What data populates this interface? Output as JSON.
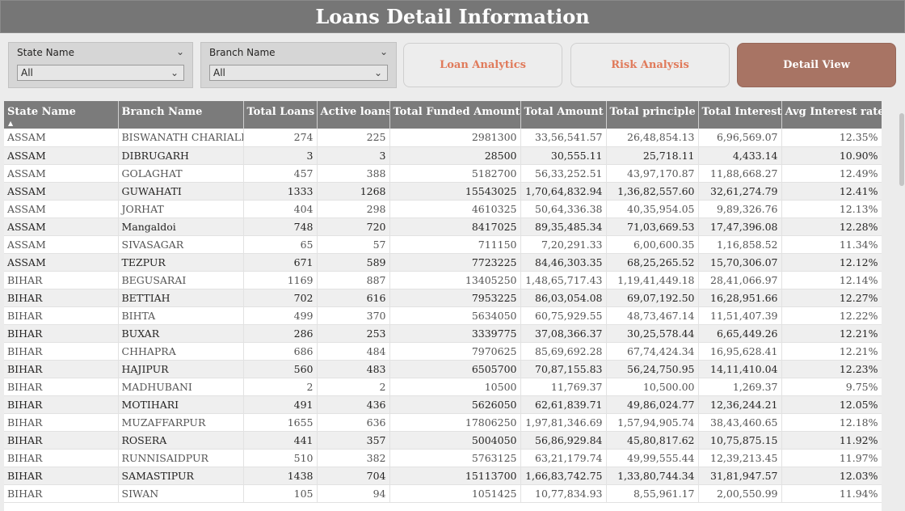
{
  "header": {
    "title": "Loans Detail Information"
  },
  "filters": {
    "state": {
      "label": "State Name",
      "value": "All"
    },
    "branch": {
      "label": "Branch Name",
      "value": "All"
    }
  },
  "nav": {
    "loan_analytics": "Loan Analytics",
    "risk_analysis": "Risk Analysis",
    "detail_view": "Detail View"
  },
  "table": {
    "columns": [
      "State Name",
      "Branch Name",
      "Total Loans",
      "Active loans",
      "Total Funded Amount",
      "Total Amount",
      "Total principle",
      "Total Interest",
      "Avg Interest rate"
    ],
    "rows": [
      [
        "ASSAM",
        "BISWANATH CHARIALI",
        "274",
        "225",
        "2981300",
        "33,56,541.57",
        "26,48,854.13",
        "6,96,569.07",
        "12.35%"
      ],
      [
        "ASSAM",
        "DIBRUGARH",
        "3",
        "3",
        "28500",
        "30,555.11",
        "25,718.11",
        "4,433.14",
        "10.90%"
      ],
      [
        "ASSAM",
        "GOLAGHAT",
        "457",
        "388",
        "5182700",
        "56,33,252.51",
        "43,97,170.87",
        "11,88,668.27",
        "12.49%"
      ],
      [
        "ASSAM",
        "GUWAHATI",
        "1333",
        "1268",
        "15543025",
        "1,70,64,832.94",
        "1,36,82,557.60",
        "32,61,274.79",
        "12.41%"
      ],
      [
        "ASSAM",
        "JORHAT",
        "404",
        "298",
        "4610325",
        "50,64,336.38",
        "40,35,954.05",
        "9,89,326.76",
        "12.13%"
      ],
      [
        "ASSAM",
        "Mangaldoi",
        "748",
        "720",
        "8417025",
        "89,35,485.34",
        "71,03,669.53",
        "17,47,396.08",
        "12.28%"
      ],
      [
        "ASSAM",
        "SIVASAGAR",
        "65",
        "57",
        "711150",
        "7,20,291.33",
        "6,00,600.35",
        "1,16,858.52",
        "11.34%"
      ],
      [
        "ASSAM",
        "TEZPUR",
        "671",
        "589",
        "7723225",
        "84,46,303.35",
        "68,25,265.52",
        "15,70,306.07",
        "12.12%"
      ],
      [
        "BIHAR",
        "BEGUSARAI",
        "1169",
        "887",
        "13405250",
        "1,48,65,717.43",
        "1,19,41,449.18",
        "28,41,066.97",
        "12.14%"
      ],
      [
        "BIHAR",
        "BETTIAH",
        "702",
        "616",
        "7953225",
        "86,03,054.08",
        "69,07,192.50",
        "16,28,951.66",
        "12.27%"
      ],
      [
        "BIHAR",
        "BIHTA",
        "499",
        "370",
        "5634050",
        "60,75,929.55",
        "48,73,467.14",
        "11,51,407.39",
        "12.22%"
      ],
      [
        "BIHAR",
        "BUXAR",
        "286",
        "253",
        "3339775",
        "37,08,366.37",
        "30,25,578.44",
        "6,65,449.26",
        "12.21%"
      ],
      [
        "BIHAR",
        "CHHAPRA",
        "686",
        "484",
        "7970625",
        "85,69,692.28",
        "67,74,424.34",
        "16,95,628.41",
        "12.21%"
      ],
      [
        "BIHAR",
        "HAJIPUR",
        "560",
        "483",
        "6505700",
        "70,87,155.83",
        "56,24,750.95",
        "14,11,410.04",
        "12.23%"
      ],
      [
        "BIHAR",
        "MADHUBANI",
        "2",
        "2",
        "10500",
        "11,769.37",
        "10,500.00",
        "1,269.37",
        "9.75%"
      ],
      [
        "BIHAR",
        "MOTIHARI",
        "491",
        "436",
        "5626050",
        "62,61,839.71",
        "49,86,024.77",
        "12,36,244.21",
        "12.05%"
      ],
      [
        "BIHAR",
        "MUZAFFARPUR",
        "1655",
        "636",
        "17806250",
        "1,97,81,346.69",
        "1,57,94,905.74",
        "38,43,460.65",
        "12.18%"
      ],
      [
        "BIHAR",
        "ROSERA",
        "441",
        "357",
        "5004050",
        "56,86,929.84",
        "45,80,817.62",
        "10,75,875.15",
        "11.92%"
      ],
      [
        "BIHAR",
        "RUNNISAIDPUR",
        "510",
        "382",
        "5763125",
        "63,21,179.74",
        "49,99,555.44",
        "12,39,213.45",
        "11.97%"
      ],
      [
        "BIHAR",
        "SAMASTIPUR",
        "1438",
        "704",
        "15113700",
        "1,66,83,742.75",
        "1,33,80,744.34",
        "31,81,947.57",
        "12.03%"
      ],
      [
        "BIHAR",
        "SIWAN",
        "105",
        "94",
        "1051425",
        "10,77,834.93",
        "8,55,961.17",
        "2,00,550.99",
        "11.94%"
      ]
    ]
  }
}
